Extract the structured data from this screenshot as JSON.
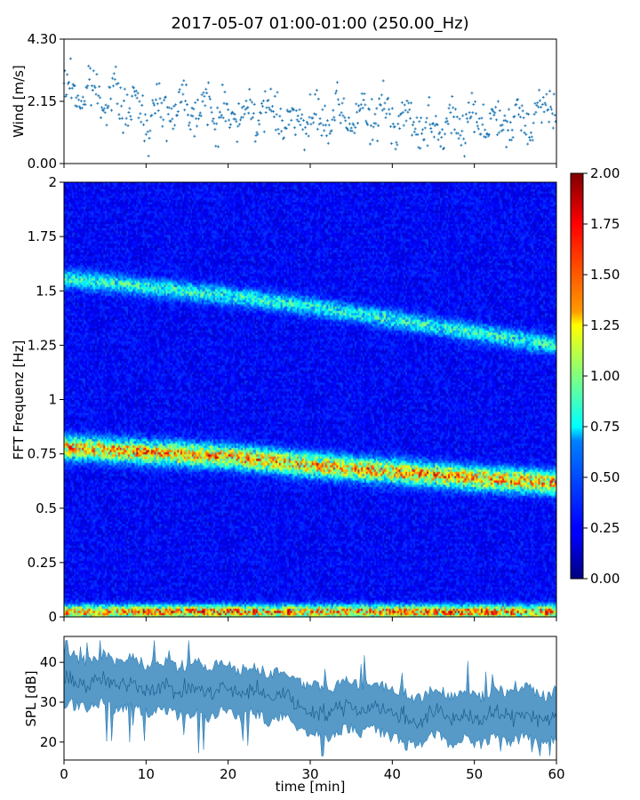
{
  "title": "2017-05-07 01:00-01:00 (250.00_Hz)",
  "chart_data": [
    {
      "id": "wind",
      "type": "scatter",
      "ylabel": "Wind [m/s]",
      "xlim": [
        0,
        60
      ],
      "ylim": [
        0,
        4.3
      ],
      "yticks": [
        0.0,
        2.15,
        4.3
      ],
      "ytick_labels": [
        "0.00",
        "2.15",
        "4.30"
      ],
      "xticks": [
        0,
        10,
        20,
        30,
        40,
        50,
        60
      ],
      "show_xtick_labels": false,
      "marker": "+",
      "color": "#1f77b4",
      "x_step_min": 0.1,
      "mean_profile_x": [
        0,
        5,
        10,
        15,
        20,
        25,
        30,
        35,
        40,
        45,
        50,
        55,
        60
      ],
      "mean_profile_y": [
        2.5,
        2.4,
        1.7,
        2.1,
        1.6,
        1.8,
        1.4,
        1.6,
        1.7,
        1.1,
        1.6,
        1.3,
        2.2
      ],
      "spread_range": [
        0.1,
        4.3
      ],
      "samples_note": "about 600 scattered samples; point cloud summarized by its running mean"
    },
    {
      "id": "spectrogram",
      "type": "heatmap",
      "ylabel": "FFT Frequenz [Hz]",
      "xlim": [
        0,
        60
      ],
      "ylim": [
        0,
        2
      ],
      "yticks": [
        0,
        0.25,
        0.5,
        0.75,
        1,
        1.25,
        1.5,
        1.75,
        2
      ],
      "ytick_labels": [
        "0",
        "0.25",
        "0.5",
        "0.75",
        "1",
        "1.25",
        "1.5",
        "1.75",
        "2"
      ],
      "xticks": [
        0,
        10,
        20,
        30,
        40,
        50,
        60
      ],
      "show_xtick_labels": false,
      "colormap": "jet",
      "clim": [
        0.0,
        2.0
      ],
      "colorbar_ticks": [
        0.0,
        0.25,
        0.5,
        0.75,
        1.0,
        1.25,
        1.5,
        1.75,
        2.0
      ],
      "colorbar_tick_labels": [
        "0.00",
        "0.25",
        "0.50",
        "0.75",
        "1.00",
        "1.25",
        "1.50",
        "1.75",
        "2.00"
      ],
      "background_level": 0.25,
      "bands": [
        {
          "name": "low-frequency band",
          "t": [
            0,
            60
          ],
          "f": [
            0.025,
            0.025
          ],
          "width_hz": 0.03,
          "peak": 1.3
        },
        {
          "name": "main tonal band",
          "t": [
            0,
            10,
            20,
            30,
            40,
            50,
            60
          ],
          "f": [
            0.78,
            0.76,
            0.74,
            0.7,
            0.67,
            0.64,
            0.62
          ],
          "width_hz": 0.05,
          "peak": 1.2
        },
        {
          "name": "harmonic band",
          "t": [
            0,
            10,
            20,
            30,
            40,
            50,
            60
          ],
          "f": [
            1.56,
            1.52,
            1.48,
            1.43,
            1.37,
            1.31,
            1.25
          ],
          "width_hz": 0.04,
          "peak": 0.6
        }
      ],
      "time_bins": 300,
      "freq_bins": 200
    },
    {
      "id": "spl",
      "type": "area",
      "ylabel": "SPL [dB]",
      "xlabel": "time [min]",
      "xlim": [
        0,
        60
      ],
      "ylim": [
        15.5,
        46.5
      ],
      "yticks": [
        20,
        30,
        40
      ],
      "ytick_labels": [
        "20",
        "30",
        "40"
      ],
      "xticks": [
        0,
        10,
        20,
        30,
        40,
        50,
        60
      ],
      "xtick_labels": [
        "0",
        "10",
        "20",
        "30",
        "40",
        "50",
        "60"
      ],
      "color": "#1f77b4",
      "mean_x": [
        0,
        5,
        10,
        15,
        20,
        25,
        28,
        30,
        35,
        40,
        42,
        45,
        50,
        55,
        60
      ],
      "mean_y": [
        35,
        35,
        34,
        33,
        33,
        32,
        31,
        27,
        29,
        28,
        25,
        27,
        26,
        27,
        26
      ],
      "band_halfwidth_db": 4.5,
      "spike_max_db": 9
    }
  ]
}
